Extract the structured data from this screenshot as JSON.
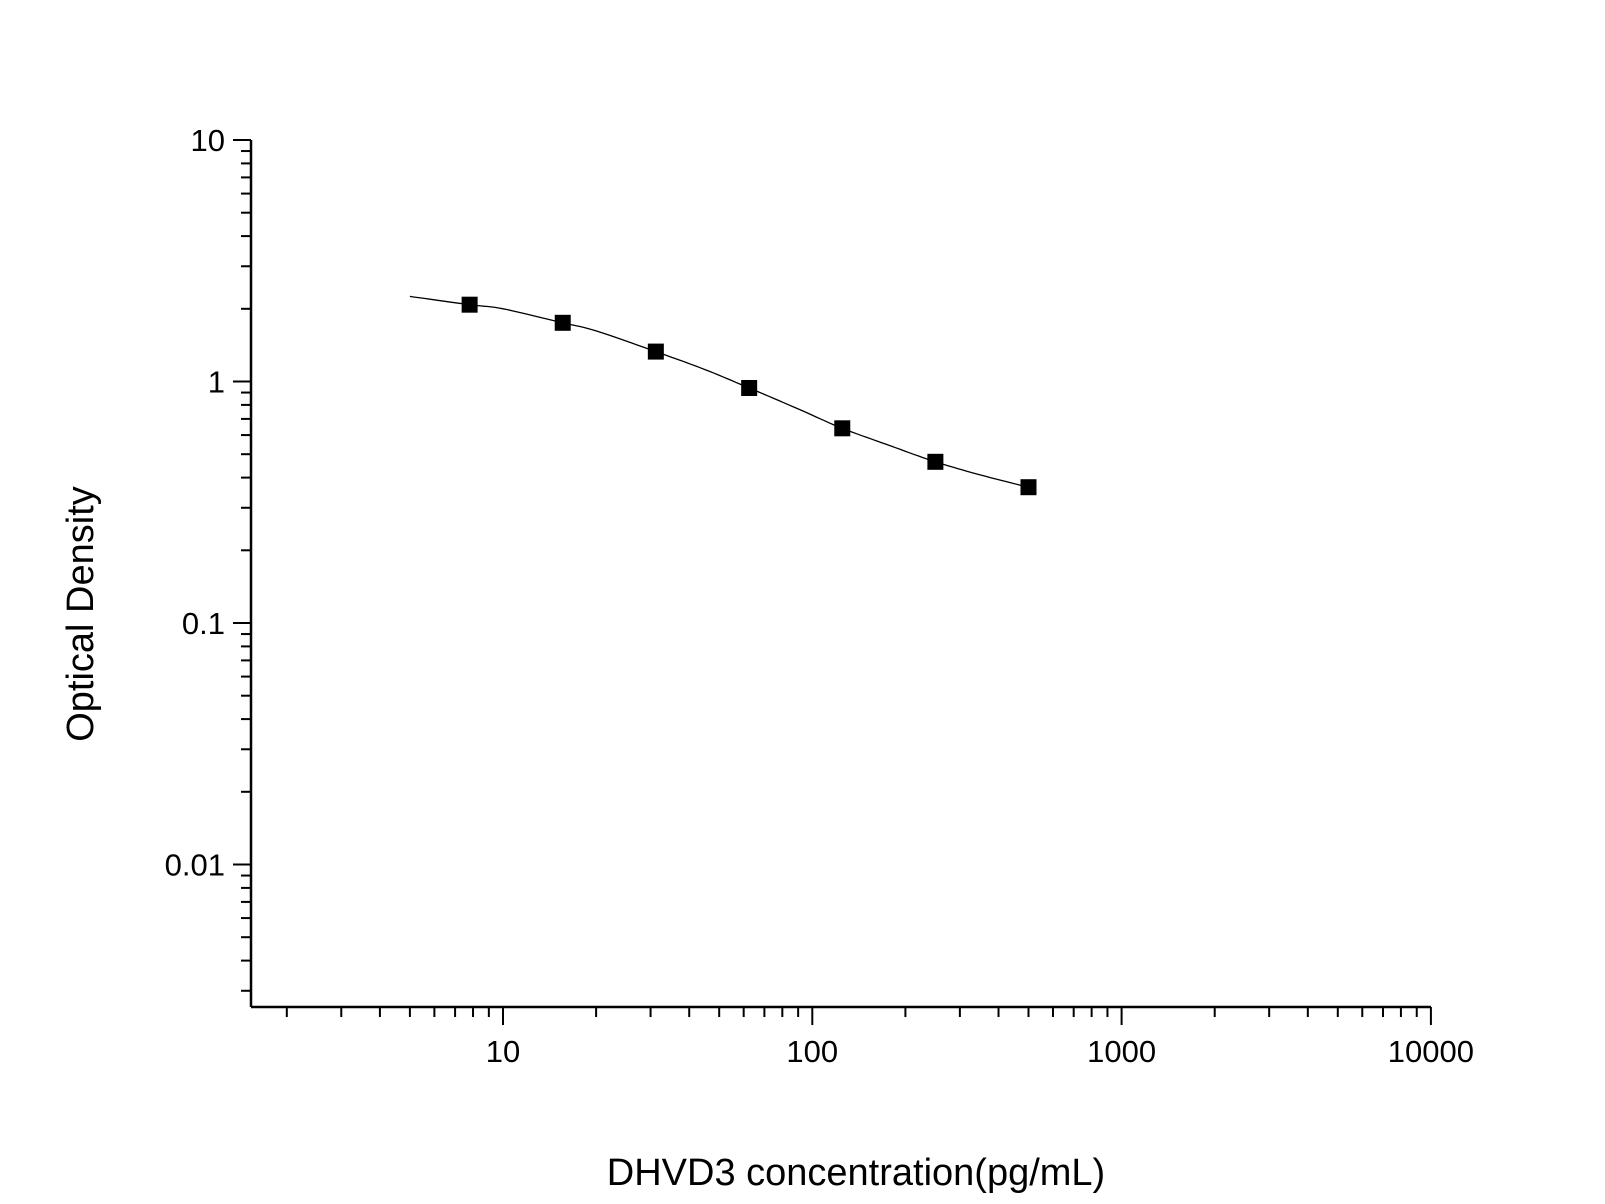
{
  "chart_data": {
    "type": "scatter",
    "title": "",
    "xlabel": "DHVD3 concentration(pg/mL)",
    "ylabel": "Optical Density",
    "x_scale": "log",
    "y_scale": "log",
    "xlim": [
      1.5,
      10000
    ],
    "ylim": [
      0.0025,
      10
    ],
    "x_ticks": [
      {
        "value": 10,
        "label": "10"
      },
      {
        "value": 100,
        "label": "100"
      },
      {
        "value": 1000,
        "label": "1000"
      },
      {
        "value": 10000,
        "label": "10000"
      }
    ],
    "y_ticks": [
      {
        "value": 10,
        "label": "10"
      },
      {
        "value": 1,
        "label": "1"
      },
      {
        "value": 0.1,
        "label": "0.1"
      },
      {
        "value": 0.01,
        "label": "0.01"
      }
    ],
    "grid": false,
    "legend": "none",
    "marker": "square",
    "series": [
      {
        "points": [
          {
            "x": 7.8,
            "y": 2.08
          },
          {
            "x": 15.6,
            "y": 1.75
          },
          {
            "x": 31.2,
            "y": 1.33
          },
          {
            "x": 62.5,
            "y": 0.94
          },
          {
            "x": 125,
            "y": 0.64
          },
          {
            "x": 250,
            "y": 0.465
          },
          {
            "x": 500,
            "y": 0.365
          }
        ]
      }
    ],
    "fit_curve": {
      "x_range": [
        5,
        500
      ],
      "samples": [
        {
          "x": 5,
          "y": 2.25
        },
        {
          "x": 7.8,
          "y": 2.08
        },
        {
          "x": 10,
          "y": 2.0
        },
        {
          "x": 15.6,
          "y": 1.75
        },
        {
          "x": 20,
          "y": 1.62
        },
        {
          "x": 31.2,
          "y": 1.33
        },
        {
          "x": 45,
          "y": 1.12
        },
        {
          "x": 62.5,
          "y": 0.94
        },
        {
          "x": 90,
          "y": 0.77
        },
        {
          "x": 125,
          "y": 0.64
        },
        {
          "x": 180,
          "y": 0.54
        },
        {
          "x": 250,
          "y": 0.465
        },
        {
          "x": 350,
          "y": 0.41
        },
        {
          "x": 500,
          "y": 0.365
        }
      ]
    },
    "colors": {
      "marker": "#000000",
      "axis": "#000000",
      "curve": "#000000"
    }
  }
}
